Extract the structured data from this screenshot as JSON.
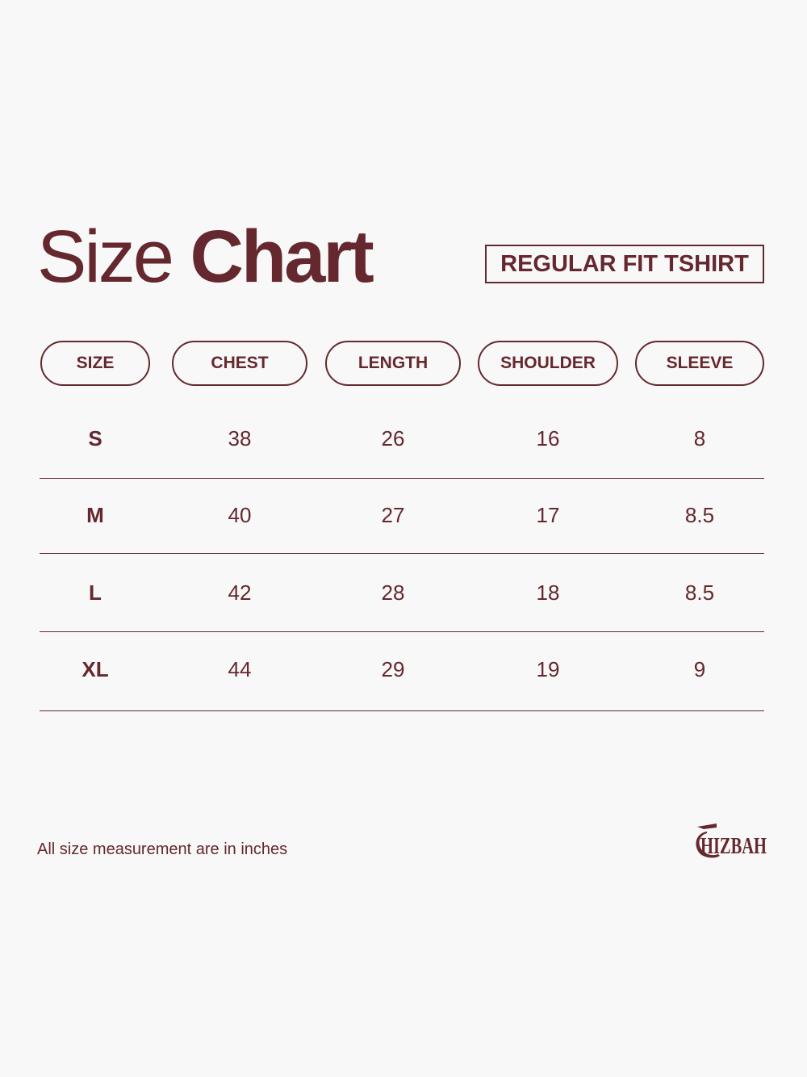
{
  "title": {
    "light": "Size",
    "bold": "Chart"
  },
  "fit_label": "REGULAR FIT TSHIRT",
  "headers": [
    "SIZE",
    "CHEST",
    "LENGTH",
    "SHOULDER",
    "SLEEVE"
  ],
  "rows": [
    [
      "S",
      "38",
      "26",
      "16",
      "8"
    ],
    [
      "M",
      "40",
      "27",
      "17",
      "8.5"
    ],
    [
      "L",
      "42",
      "28",
      "18",
      "8.5"
    ],
    [
      "XL",
      "44",
      "29",
      "19",
      "9"
    ]
  ],
  "footnote": "All size measurement are in inches",
  "brand": {
    "name": "HIZBAH",
    "logo_text": "IIZBAH"
  },
  "colors": {
    "accent": "#64282e",
    "background": "#f8f8f8"
  }
}
